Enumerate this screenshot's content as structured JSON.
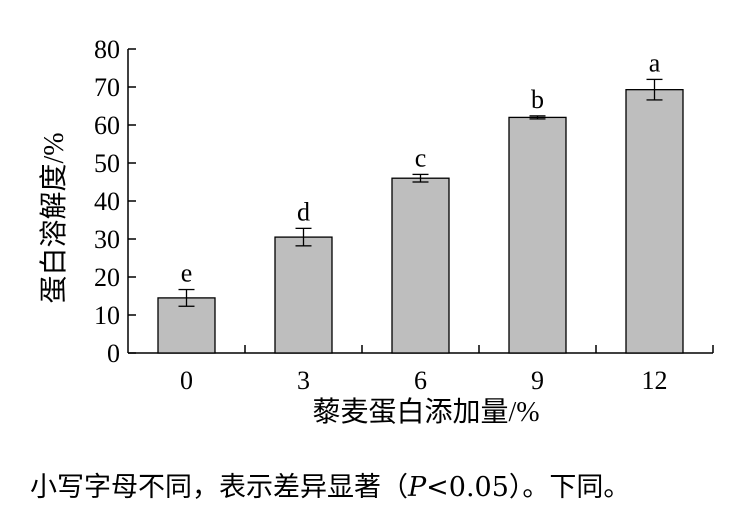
{
  "chart_data": {
    "type": "bar",
    "categories": [
      "0",
      "3",
      "6",
      "9",
      "12"
    ],
    "values": [
      14.5,
      30.5,
      46.0,
      62.0,
      69.3
    ],
    "errors": [
      2.2,
      2.3,
      1.0,
      0.4,
      2.7
    ],
    "significance": [
      "e",
      "d",
      "c",
      "b",
      "a"
    ],
    "xlabel": "藜麦蛋白添加量/%",
    "ylabel": "蛋白溶解度/%",
    "ylim": [
      0,
      80
    ],
    "yticks": [
      "0",
      "10",
      "20",
      "30",
      "40",
      "50",
      "60",
      "70",
      "80"
    ],
    "grid": false,
    "legend": "none",
    "bar_color": "#bebebe",
    "edge_color": "#000000"
  },
  "caption": {
    "before": "小写字母不同，表示差异显著（",
    "p_symbol": "P",
    "after": "<0.05）。下同。"
  }
}
